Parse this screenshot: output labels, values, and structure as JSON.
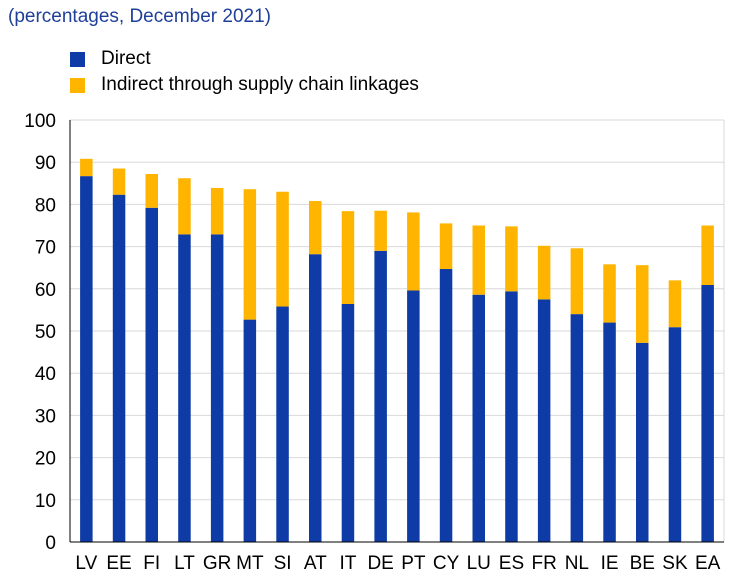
{
  "chart_data": {
    "type": "bar",
    "stacked": true,
    "subtitle": "(percentages, December 2021)",
    "categories": [
      "LV",
      "EE",
      "FI",
      "LT",
      "GR",
      "MT",
      "SI",
      "AT",
      "IT",
      "DE",
      "PT",
      "CY",
      "LU",
      "ES",
      "FR",
      "NL",
      "IE",
      "BE",
      "SK",
      "EA"
    ],
    "series": [
      {
        "name": "Direct",
        "color": "#0e3ba6",
        "values": [
          86.7,
          82.3,
          79.2,
          72.9,
          72.9,
          52.7,
          55.8,
          68.2,
          56.4,
          69.0,
          59.6,
          64.7,
          58.6,
          59.4,
          57.5,
          54.0,
          52.0,
          47.2,
          50.9,
          60.9
        ]
      },
      {
        "name": "Indirect through supply chain linkages",
        "color": "#ffb400",
        "values": [
          4.1,
          6.2,
          8.0,
          13.3,
          11.0,
          30.9,
          27.2,
          12.6,
          22.0,
          9.5,
          18.5,
          10.8,
          16.4,
          15.4,
          12.7,
          15.6,
          13.8,
          18.4,
          11.1,
          14.1
        ]
      }
    ],
    "yticks": [
      "0",
      "10",
      "20",
      "30",
      "40",
      "50",
      "60",
      "70",
      "80",
      "90",
      "100"
    ],
    "ylim": [
      0,
      100
    ],
    "grid": true,
    "legend_position": "top-left"
  }
}
